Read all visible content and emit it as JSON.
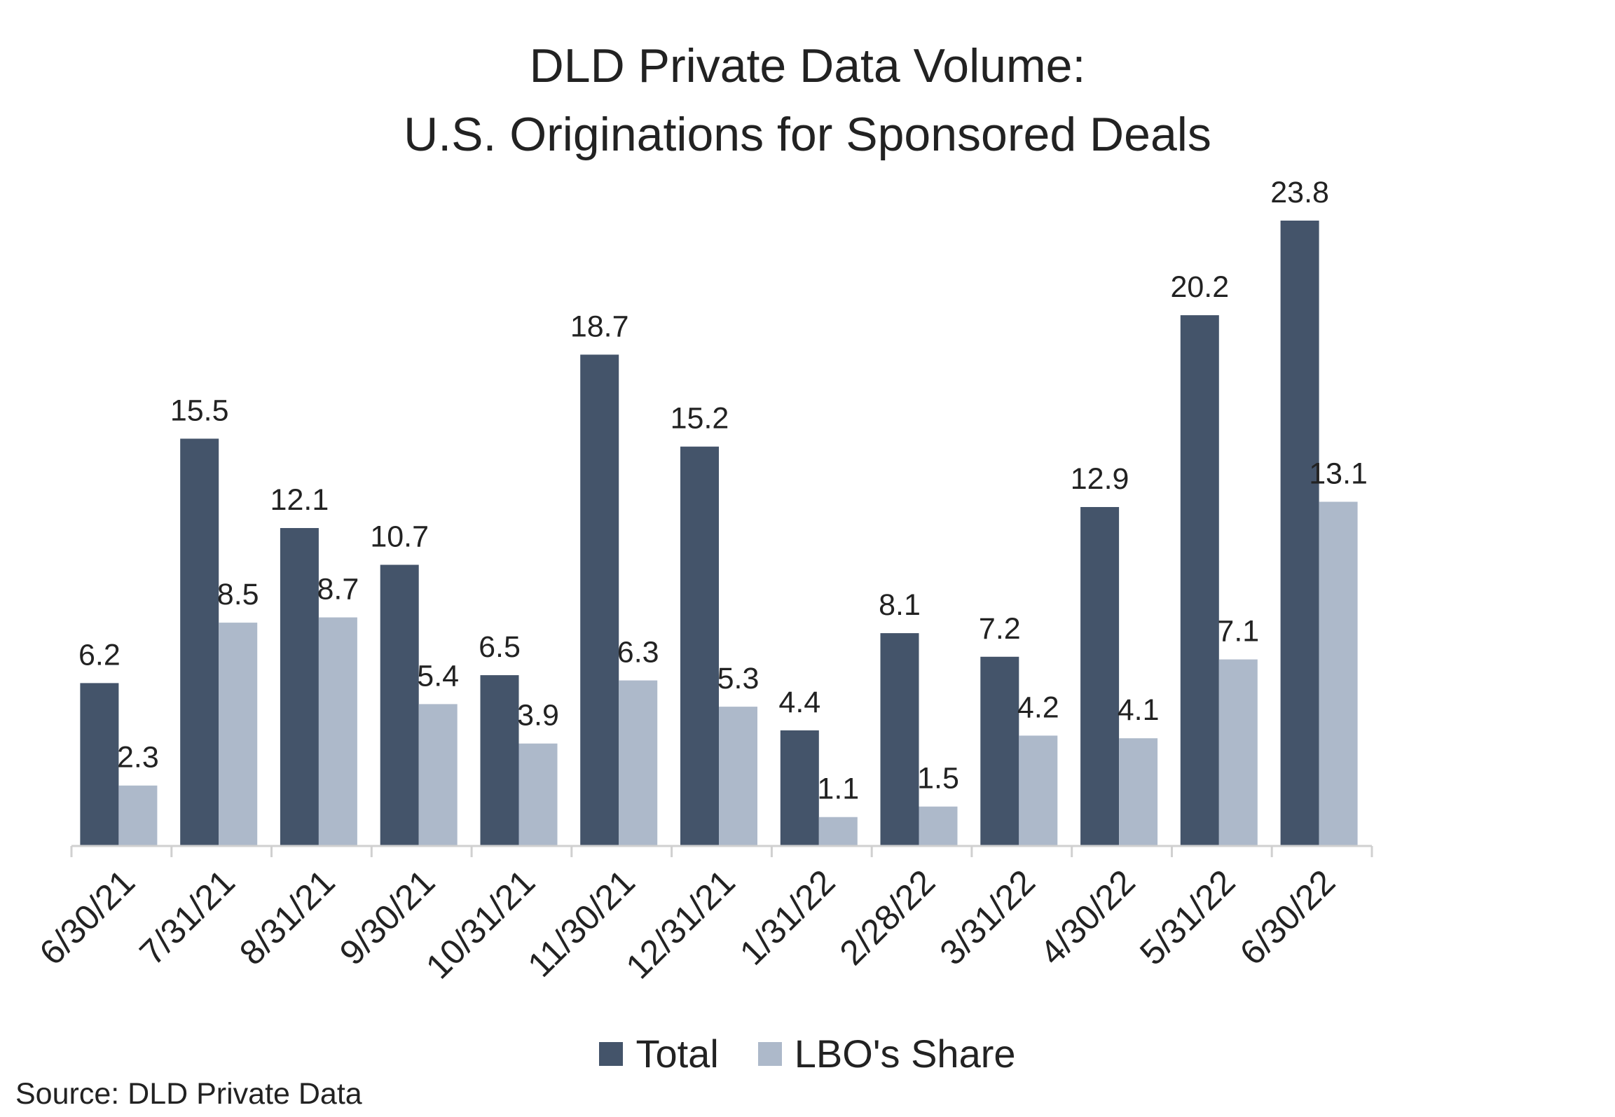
{
  "chart_data": {
    "type": "bar",
    "title": "DLD Private Data Volume:",
    "subtitle": "U.S. Originations for Sponsored Deals",
    "xlabel": "",
    "ylabel": "",
    "ylim": [
      0,
      23.8
    ],
    "grid": false,
    "legend_position": "bottom-center",
    "categories": [
      "6/30/21",
      "7/31/21",
      "8/31/21",
      "9/30/21",
      "10/31/21",
      "11/30/21",
      "12/31/21",
      "1/31/22",
      "2/28/22",
      "3/31/22",
      "4/30/22",
      "5/31/22",
      "6/30/22"
    ],
    "series": [
      {
        "name": "Total",
        "color": "#44546a",
        "values": [
          6.2,
          15.5,
          12.1,
          10.7,
          6.5,
          18.7,
          15.2,
          4.4,
          8.1,
          7.2,
          12.9,
          20.2,
          23.8
        ]
      },
      {
        "name": "LBO's Share",
        "color": "#adb9ca",
        "values": [
          2.3,
          8.5,
          8.7,
          5.4,
          3.9,
          6.3,
          5.3,
          1.1,
          1.5,
          4.2,
          4.1,
          7.1,
          13.1
        ]
      }
    ],
    "source": "Source: DLD Private Data"
  }
}
